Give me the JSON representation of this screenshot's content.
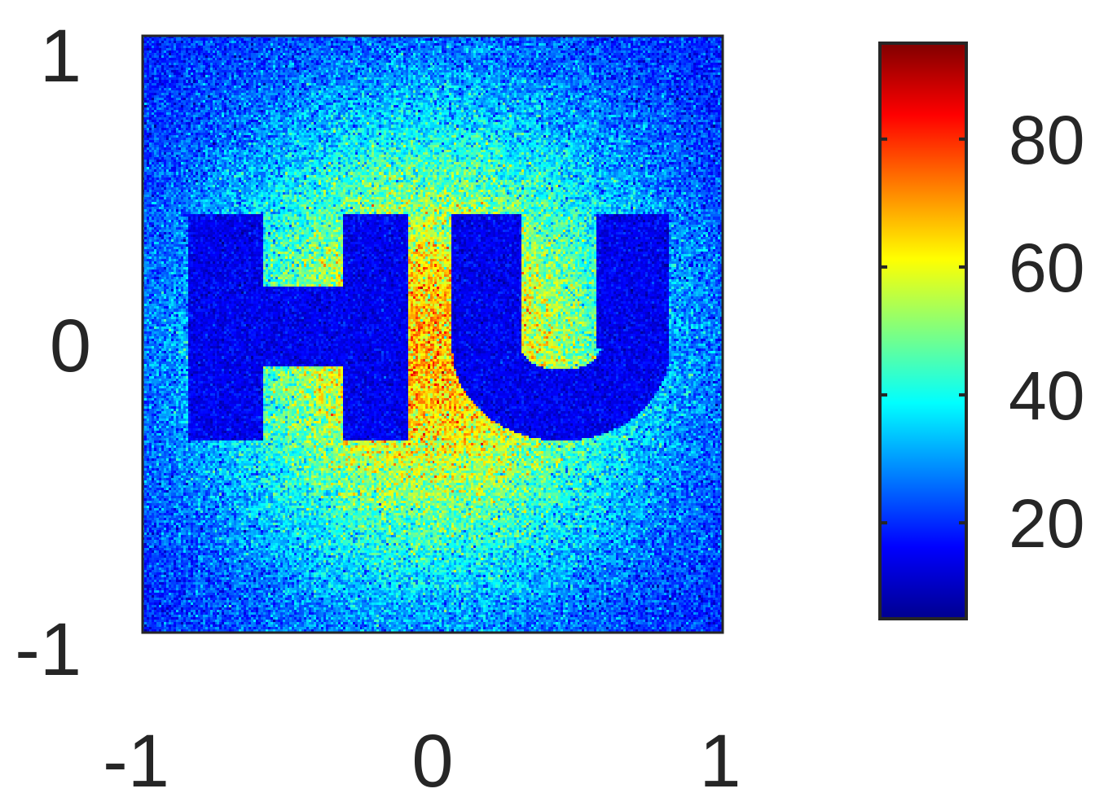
{
  "chart_data": {
    "type": "heatmap",
    "title": "",
    "xlabel": "",
    "ylabel": "",
    "xlim": [
      -1,
      1
    ],
    "ylim": [
      -1,
      1
    ],
    "x_ticks": [
      "-1",
      "0",
      "1"
    ],
    "y_ticks": [
      "-1",
      "0",
      "1"
    ],
    "colormap": "jet",
    "color_range": [
      5,
      95
    ],
    "colorbar_ticks": [
      "20",
      "40",
      "60",
      "80"
    ],
    "colorbar_tick_values": [
      20,
      40,
      60,
      80
    ],
    "background_model": {
      "description": "noisy smooth intensity field, peak near x=0, y=-0.05",
      "peak_value": 68,
      "edge_value": 18,
      "noise_std": 7
    },
    "masked_region_value": 15,
    "masked_region_shape": "letters",
    "masked_letters": "HU",
    "grid": false,
    "legend": "colorbar-right"
  }
}
